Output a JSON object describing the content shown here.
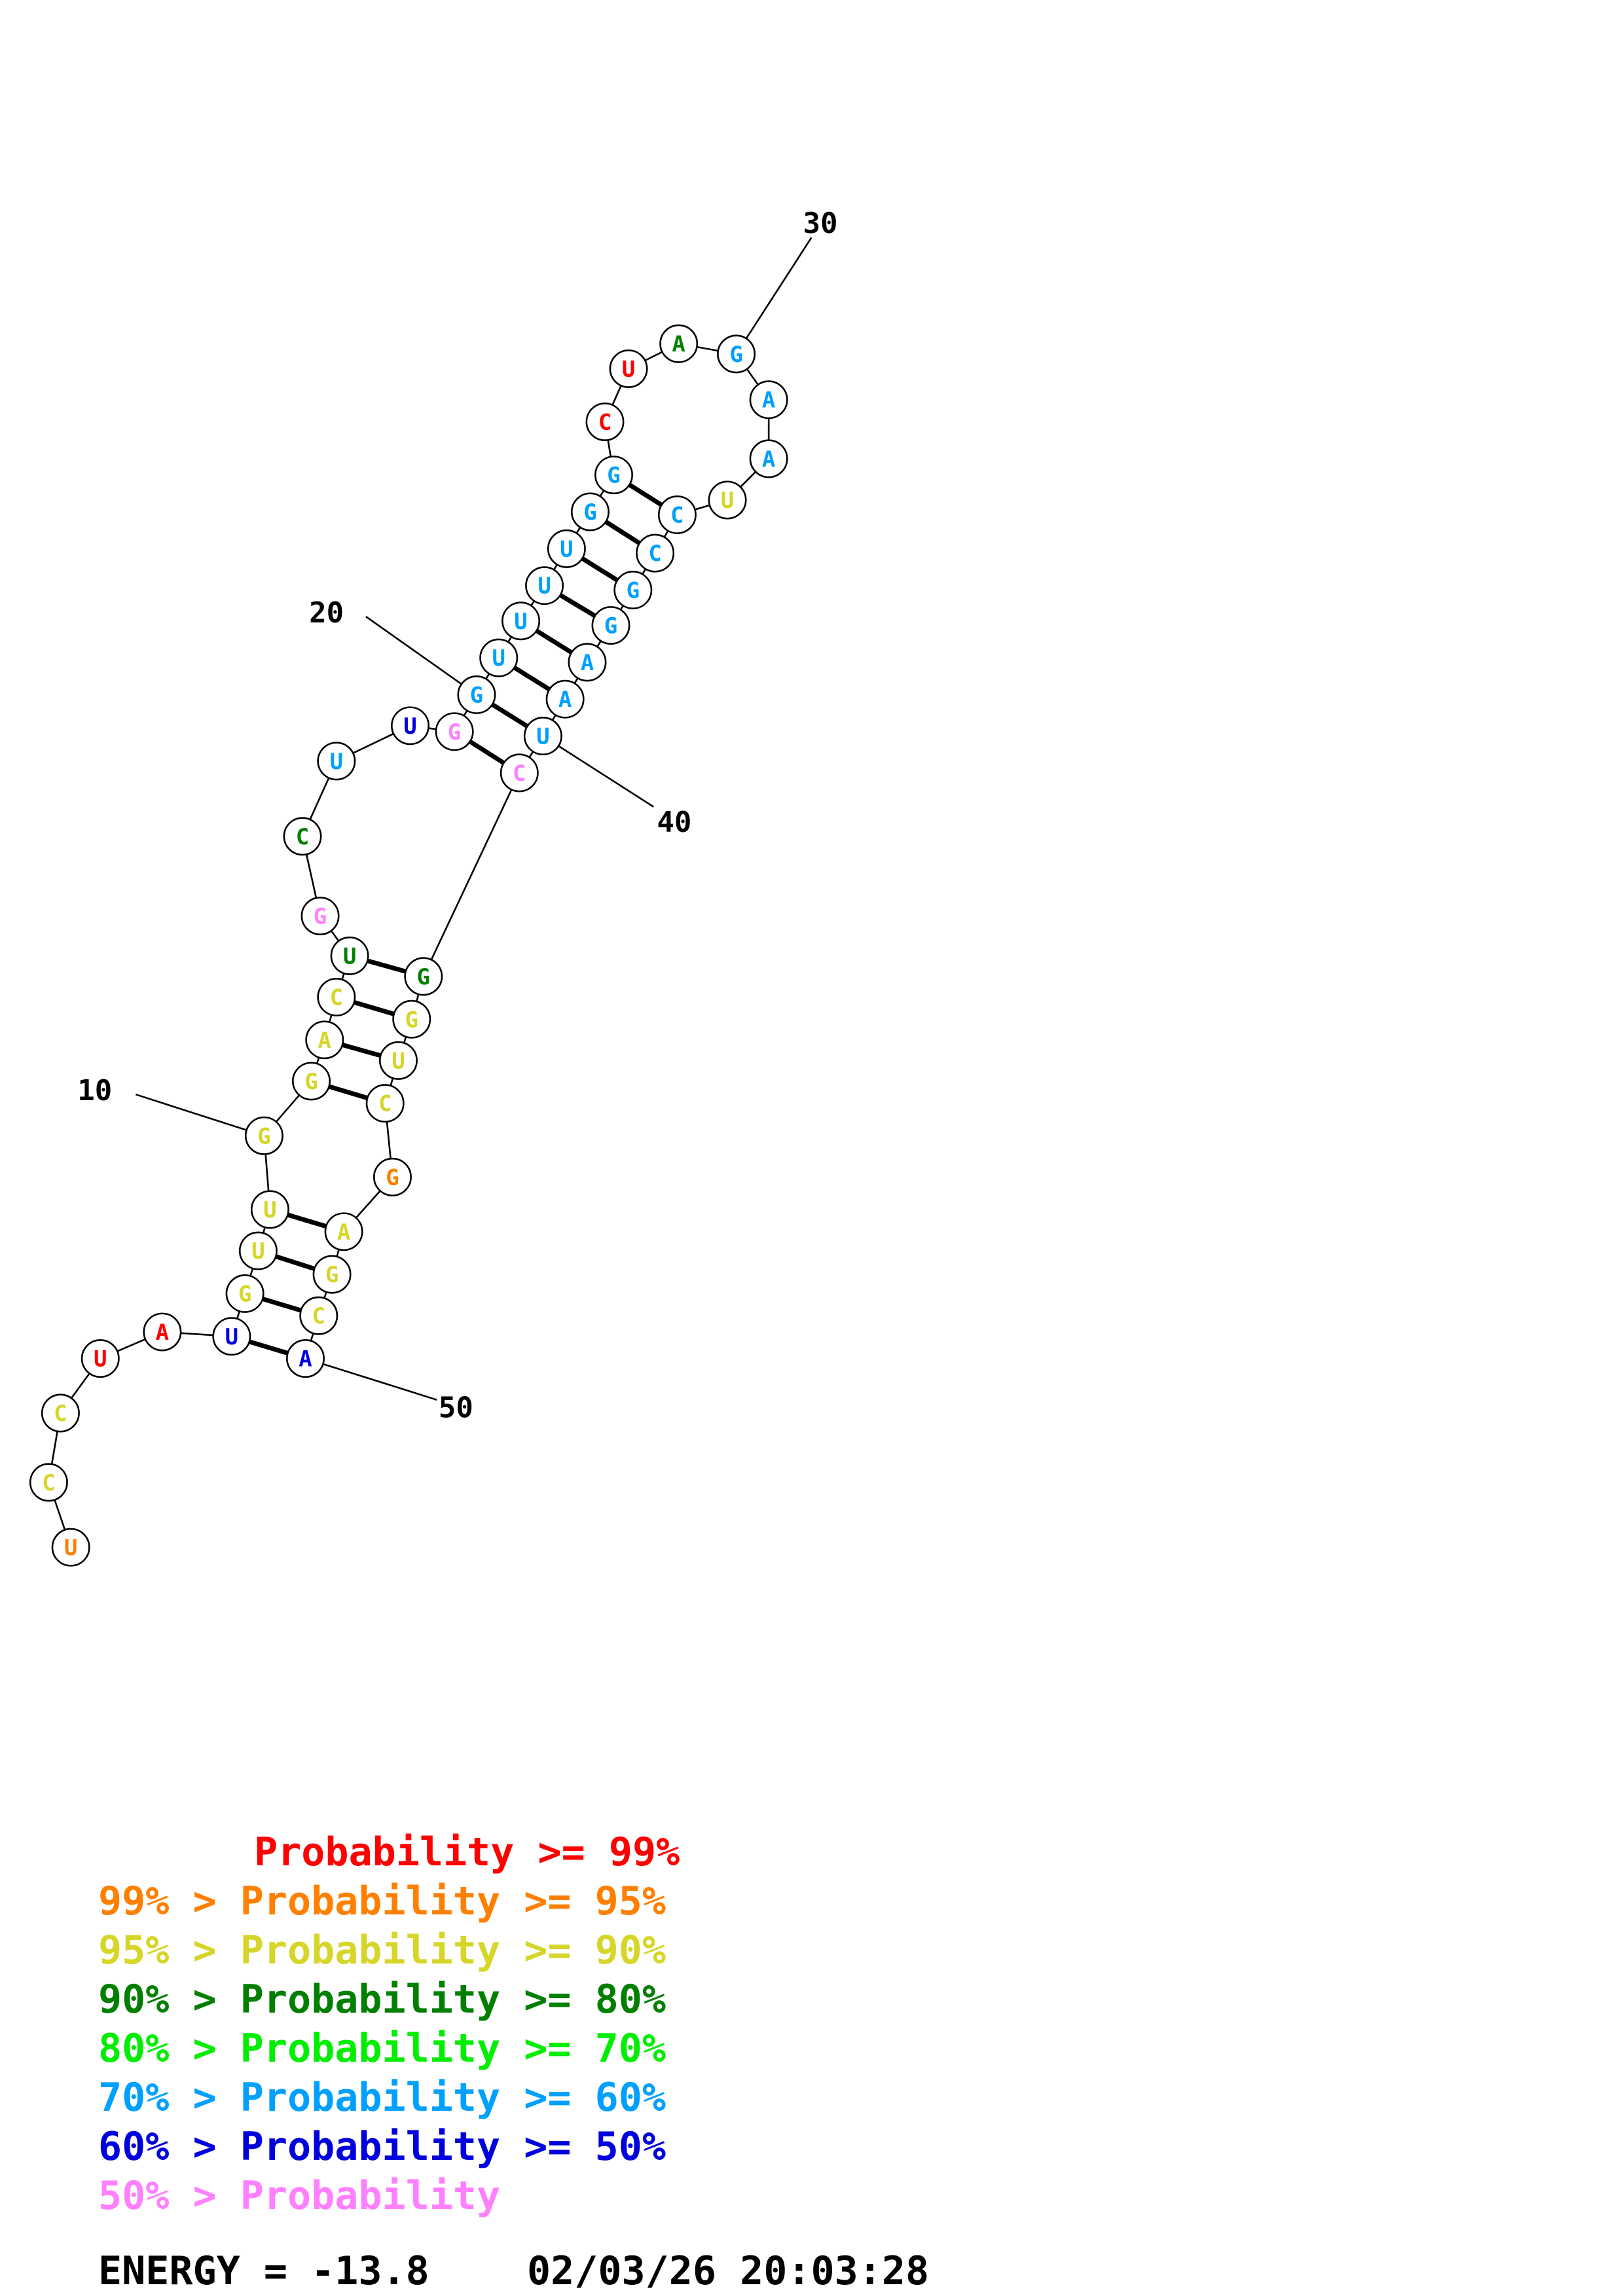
{
  "colors": {
    "red": "#ff0000",
    "orange": "#ff8000",
    "yellow": "#d6d62a",
    "dark-green": "#007f00",
    "green": "#00ee00",
    "blue": "#00a0ff",
    "dark-blue": "#0000dd",
    "pink": "#ff80ff"
  },
  "nucleotides": [
    {
      "i": 1,
      "base": "U",
      "color": "orange"
    },
    {
      "i": 2,
      "base": "C",
      "color": "yellow"
    },
    {
      "i": 3,
      "base": "C",
      "color": "yellow"
    },
    {
      "i": 4,
      "base": "U",
      "color": "red"
    },
    {
      "i": 5,
      "base": "A",
      "color": "red"
    },
    {
      "i": 6,
      "base": "U",
      "color": "dark-blue"
    },
    {
      "i": 7,
      "base": "G",
      "color": "yellow"
    },
    {
      "i": 8,
      "base": "U",
      "color": "yellow"
    },
    {
      "i": 9,
      "base": "U",
      "color": "yellow"
    },
    {
      "i": 10,
      "base": "G",
      "color": "yellow"
    },
    {
      "i": 11,
      "base": "G",
      "color": "yellow"
    },
    {
      "i": 12,
      "base": "A",
      "color": "yellow"
    },
    {
      "i": 13,
      "base": "C",
      "color": "yellow"
    },
    {
      "i": 14,
      "base": "U",
      "color": "dark-green"
    },
    {
      "i": 15,
      "base": "G",
      "color": "pink"
    },
    {
      "i": 16,
      "base": "C",
      "color": "dark-green"
    },
    {
      "i": 17,
      "base": "U",
      "color": "blue"
    },
    {
      "i": 18,
      "base": "U",
      "color": "dark-blue"
    },
    {
      "i": 19,
      "base": "G",
      "color": "pink"
    },
    {
      "i": 20,
      "base": "G",
      "color": "blue"
    },
    {
      "i": 21,
      "base": "U",
      "color": "blue"
    },
    {
      "i": 22,
      "base": "U",
      "color": "blue"
    },
    {
      "i": 23,
      "base": "U",
      "color": "blue"
    },
    {
      "i": 24,
      "base": "U",
      "color": "blue"
    },
    {
      "i": 25,
      "base": "G",
      "color": "blue"
    },
    {
      "i": 26,
      "base": "G",
      "color": "blue"
    },
    {
      "i": 27,
      "base": "C",
      "color": "red"
    },
    {
      "i": 28,
      "base": "U",
      "color": "red"
    },
    {
      "i": 29,
      "base": "A",
      "color": "dark-green"
    },
    {
      "i": 30,
      "base": "G",
      "color": "blue"
    },
    {
      "i": 31,
      "base": "A",
      "color": "blue"
    },
    {
      "i": 32,
      "base": "A",
      "color": "blue"
    },
    {
      "i": 33,
      "base": "U",
      "color": "yellow"
    },
    {
      "i": 34,
      "base": "C",
      "color": "blue"
    },
    {
      "i": 35,
      "base": "C",
      "color": "blue"
    },
    {
      "i": 36,
      "base": "G",
      "color": "blue"
    },
    {
      "i": 37,
      "base": "G",
      "color": "blue"
    },
    {
      "i": 38,
      "base": "A",
      "color": "blue"
    },
    {
      "i": 39,
      "base": "A",
      "color": "blue"
    },
    {
      "i": 40,
      "base": "U",
      "color": "blue"
    },
    {
      "i": 41,
      "base": "C",
      "color": "pink"
    },
    {
      "i": 42,
      "base": "G",
      "color": "dark-green"
    },
    {
      "i": 43,
      "base": "G",
      "color": "yellow"
    },
    {
      "i": 44,
      "base": "U",
      "color": "yellow"
    },
    {
      "i": 45,
      "base": "C",
      "color": "yellow"
    },
    {
      "i": 46,
      "base": "G",
      "color": "orange"
    },
    {
      "i": 47,
      "base": "A",
      "color": "yellow"
    },
    {
      "i": 48,
      "base": "G",
      "color": "yellow"
    },
    {
      "i": 49,
      "base": "C",
      "color": "yellow"
    },
    {
      "i": 50,
      "base": "A",
      "color": "dark-blue"
    }
  ],
  "pairs": [
    [
      6,
      50
    ],
    [
      7,
      49
    ],
    [
      8,
      48
    ],
    [
      9,
      47
    ],
    [
      11,
      45
    ],
    [
      12,
      44
    ],
    [
      13,
      43
    ],
    [
      14,
      42
    ],
    [
      19,
      41
    ],
    [
      20,
      40
    ],
    [
      21,
      39
    ],
    [
      22,
      38
    ],
    [
      23,
      37
    ],
    [
      24,
      36
    ],
    [
      25,
      35
    ],
    [
      26,
      34
    ]
  ],
  "position_labels": [
    {
      "label": "10",
      "target": 10
    },
    {
      "label": "20",
      "target": 20
    },
    {
      "label": "30",
      "target": 30
    },
    {
      "label": "40",
      "target": 40
    },
    {
      "label": "50",
      "target": 50
    }
  ],
  "legend": [
    {
      "prefix": "",
      "text": "Probability >= 99%",
      "color": "red"
    },
    {
      "prefix": "99% > ",
      "text": "Probability >= 95%",
      "color": "orange"
    },
    {
      "prefix": "95% > ",
      "text": "Probability >= 90%",
      "color": "yellow"
    },
    {
      "prefix": "90% > ",
      "text": "Probability >= 80%",
      "color": "dark-green"
    },
    {
      "prefix": "80% > ",
      "text": "Probability >= 70%",
      "color": "green"
    },
    {
      "prefix": "70% > ",
      "text": "Probability >= 60%",
      "color": "blue"
    },
    {
      "prefix": "60% > ",
      "text": "Probability >= 50%",
      "color": "dark-blue"
    },
    {
      "prefix": "50% > ",
      "text": "Probability",
      "color": "pink"
    }
  ],
  "footer": {
    "energy": "ENERGY = -13.8",
    "timestamp": "02/03/26 20:03:28"
  }
}
